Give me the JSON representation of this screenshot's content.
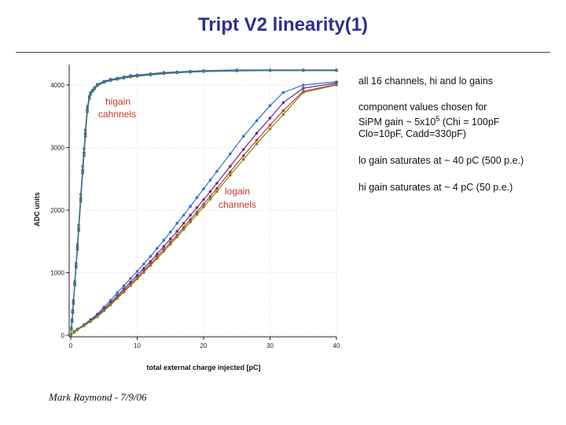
{
  "title": "Tript V2 linearity(1)",
  "footer": "Mark Raymond - 7/9/06",
  "notes": [
    "all 16 channels, hi and lo gains",
    "component values chosen for",
    "SiPM gain ~ 5x10",
    "5",
    " (Chi = 100pF",
    "Clo=10pF, Cadd=330pF)",
    "lo gain saturates at ~ 40 pC (500 p.e.)",
    "hi gain saturates at ~ 4 pC (50 p.e.)"
  ],
  "chart_data": {
    "type": "line",
    "xlabel": "total external charge injected [pC]",
    "ylabel": "ADC units",
    "xlim": [
      0,
      40
    ],
    "ylim": [
      0,
      4200
    ],
    "xticks": [
      0,
      10,
      20,
      30,
      40
    ],
    "yticks": [
      0,
      1000,
      2000,
      3000,
      4000
    ],
    "annotations": [
      "higain cahnnels",
      "logain channels"
    ],
    "series": [
      {
        "group": "higain",
        "color": "#2e6fd8",
        "x": [
          0,
          0.1,
          0.2,
          0.3,
          0.4,
          0.6,
          0.8,
          1.0,
          1.2,
          1.5,
          1.8,
          2.0,
          2.2,
          2.5,
          2.8,
          3.0,
          3.3,
          3.6,
          4,
          5,
          6,
          7,
          8,
          9,
          10,
          12,
          14,
          16,
          18,
          20,
          25,
          30,
          35,
          40
        ],
        "y": [
          0,
          120,
          250,
          400,
          560,
          860,
          1150,
          1450,
          1760,
          2250,
          2700,
          2980,
          3280,
          3650,
          3820,
          3880,
          3920,
          3960,
          4010,
          4060,
          4090,
          4110,
          4130,
          4150,
          4160,
          4180,
          4200,
          4210,
          4220,
          4230,
          4240,
          4240,
          4240,
          4240
        ]
      },
      {
        "group": "higain",
        "color": "#6a2b8c",
        "x": [
          0,
          0.1,
          0.2,
          0.3,
          0.4,
          0.6,
          0.8,
          1.0,
          1.2,
          1.5,
          1.8,
          2.0,
          2.2,
          2.5,
          2.8,
          3.0,
          3.3,
          3.6,
          4,
          5,
          6,
          7,
          8,
          9,
          10,
          12,
          14,
          16,
          18,
          20,
          25,
          30,
          35,
          40
        ],
        "y": [
          0,
          110,
          230,
          380,
          530,
          830,
          1110,
          1410,
          1710,
          2190,
          2640,
          2920,
          3230,
          3610,
          3800,
          3860,
          3910,
          3950,
          4000,
          4050,
          4080,
          4100,
          4120,
          4140,
          4150,
          4170,
          4190,
          4200,
          4210,
          4220,
          4230,
          4235,
          4235,
          4235
        ]
      },
      {
        "group": "higain",
        "color": "#c0392b",
        "x": [
          0,
          0.1,
          0.2,
          0.3,
          0.4,
          0.6,
          0.8,
          1.0,
          1.2,
          1.5,
          1.8,
          2.0,
          2.2,
          2.5,
          2.8,
          3.0,
          3.3,
          3.6,
          4,
          5,
          6,
          7,
          8,
          9,
          10,
          12,
          14,
          16,
          18,
          20,
          25,
          30,
          35,
          40
        ],
        "y": [
          0,
          100,
          215,
          360,
          505,
          800,
          1080,
          1370,
          1670,
          2140,
          2590,
          2870,
          3180,
          3570,
          3780,
          3850,
          3900,
          3940,
          3990,
          4040,
          4070,
          4090,
          4110,
          4130,
          4140,
          4160,
          4180,
          4195,
          4205,
          4215,
          4225,
          4230,
          4230,
          4230
        ]
      },
      {
        "group": "higain",
        "color": "#2c8a7a",
        "x": [
          0,
          0.1,
          0.2,
          0.3,
          0.4,
          0.6,
          0.8,
          1.0,
          1.2,
          1.5,
          1.8,
          2.0,
          2.2,
          2.5,
          2.8,
          3.0,
          3.3,
          3.6,
          4,
          5,
          6,
          7,
          8,
          9,
          10,
          12,
          14,
          16,
          18,
          20,
          25,
          30,
          35,
          40
        ],
        "y": [
          0,
          105,
          220,
          370,
          515,
          815,
          1095,
          1390,
          1690,
          2165,
          2615,
          2895,
          3205,
          3590,
          3790,
          3855,
          3905,
          3945,
          3995,
          4045,
          4075,
          4095,
          4115,
          4135,
          4145,
          4165,
          4185,
          4198,
          4208,
          4218,
          4228,
          4232,
          4232,
          4232
        ]
      },
      {
        "group": "logain",
        "color": "#2e6fd8",
        "x": [
          0,
          0.5,
          1,
          2,
          3,
          4,
          5,
          6,
          7,
          8,
          9,
          10,
          11,
          12,
          13,
          14,
          15,
          16,
          17,
          18,
          19,
          20,
          21,
          22,
          24,
          26,
          28,
          30,
          32,
          35,
          40
        ],
        "y": [
          0,
          60,
          100,
          170,
          250,
          340,
          450,
          560,
          680,
          790,
          910,
          1020,
          1140,
          1260,
          1390,
          1520,
          1650,
          1790,
          1920,
          2060,
          2200,
          2340,
          2480,
          2620,
          2900,
          3180,
          3430,
          3670,
          3880,
          4000,
          4050
        ]
      },
      {
        "group": "logain",
        "color": "#6a2b8c",
        "x": [
          0,
          0.5,
          1,
          2,
          3,
          4,
          5,
          6,
          7,
          8,
          9,
          10,
          11,
          12,
          13,
          14,
          15,
          16,
          17,
          18,
          19,
          20,
          21,
          22,
          24,
          26,
          28,
          30,
          32,
          35,
          40
        ],
        "y": [
          0,
          55,
          95,
          160,
          235,
          320,
          420,
          520,
          630,
          740,
          850,
          960,
          1070,
          1180,
          1300,
          1420,
          1540,
          1660,
          1790,
          1920,
          2040,
          2170,
          2300,
          2430,
          2700,
          2970,
          3230,
          3470,
          3720,
          3950,
          4030
        ]
      },
      {
        "group": "logain",
        "color": "#c0392b",
        "x": [
          0,
          0.5,
          1,
          2,
          3,
          4,
          5,
          6,
          7,
          8,
          9,
          10,
          11,
          12,
          13,
          14,
          15,
          16,
          17,
          18,
          19,
          20,
          21,
          22,
          24,
          26,
          28,
          30,
          32,
          35,
          40
        ],
        "y": [
          0,
          50,
          90,
          155,
          225,
          305,
          400,
          500,
          605,
          710,
          815,
          920,
          1030,
          1140,
          1255,
          1370,
          1485,
          1600,
          1725,
          1850,
          1970,
          2095,
          2220,
          2350,
          2610,
          2870,
          3120,
          3360,
          3590,
          3900,
          4010
        ]
      },
      {
        "group": "logain",
        "color": "#7a8a1a",
        "x": [
          0,
          0.5,
          1,
          2,
          3,
          4,
          5,
          6,
          7,
          8,
          9,
          10,
          11,
          12,
          13,
          14,
          15,
          16,
          17,
          18,
          19,
          20,
          21,
          22,
          24,
          26,
          28,
          30,
          32,
          35,
          40
        ],
        "y": [
          0,
          48,
          85,
          150,
          220,
          295,
          390,
          485,
          590,
          690,
          795,
          900,
          1005,
          1115,
          1225,
          1340,
          1455,
          1570,
          1690,
          1810,
          1930,
          2050,
          2175,
          2300,
          2560,
          2810,
          3060,
          3300,
          3530,
          3880,
          4000
        ]
      }
    ]
  }
}
